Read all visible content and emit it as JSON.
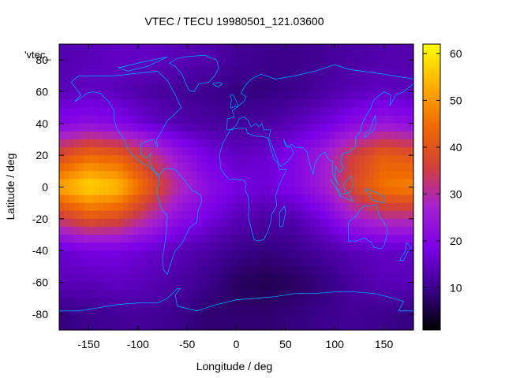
{
  "chart_data": {
    "type": "heatmap",
    "title": "VTEC / TECU 19980501_121.03600",
    "xlabel": "Longitude / deg",
    "ylabel": "Latitude / deg",
    "xlim": [
      -180,
      180
    ],
    "ylim": [
      -90,
      90
    ],
    "clim": [
      1,
      62
    ],
    "xticks": [
      "-150",
      "-100",
      "-50",
      "0",
      "50",
      "100",
      "150"
    ],
    "xtick_values": [
      -150,
      -100,
      -50,
      0,
      50,
      100,
      150
    ],
    "yticks": [
      "80",
      "60",
      "40",
      "20",
      "0",
      "-20",
      "-40",
      "-60",
      "-80"
    ],
    "ytick_values": [
      80,
      60,
      40,
      20,
      0,
      -20,
      -40,
      -60,
      -80
    ],
    "cbticks": [
      "60",
      "50",
      "40",
      "30",
      "20",
      "10"
    ],
    "cbtick_values": [
      60,
      50,
      40,
      30,
      20,
      10
    ],
    "legend_entry": "'vtec_",
    "colormap": [
      "#000000",
      "#3a008a",
      "#7b00e8",
      "#a520d0",
      "#d2403a",
      "#f06a00",
      "#ffb000",
      "#ffff00"
    ],
    "coastline_color": "#00a0ff",
    "field_samples": {
      "description_units": "TECU",
      "lon": [
        -180,
        -150,
        -120,
        -90,
        -60,
        -30,
        0,
        30,
        60,
        90,
        120,
        150,
        180
      ],
      "lat": [
        80,
        60,
        40,
        20,
        0,
        -20,
        -40,
        -60,
        -80
      ],
      "values": [
        [
          13,
          14,
          15,
          15,
          14,
          13,
          11,
          10,
          10,
          11,
          12,
          13,
          13
        ],
        [
          14,
          15,
          14,
          12,
          11,
          10,
          9,
          9,
          10,
          12,
          14,
          15,
          14
        ],
        [
          20,
          22,
          20,
          16,
          13,
          12,
          11,
          12,
          14,
          17,
          21,
          24,
          22
        ],
        [
          38,
          44,
          42,
          34,
          24,
          18,
          15,
          16,
          20,
          26,
          36,
          42,
          40
        ],
        [
          52,
          58,
          55,
          42,
          30,
          22,
          18,
          17,
          20,
          26,
          38,
          46,
          48
        ],
        [
          34,
          40,
          38,
          30,
          22,
          18,
          14,
          12,
          13,
          18,
          26,
          30,
          30
        ],
        [
          16,
          18,
          18,
          16,
          14,
          12,
          10,
          9,
          10,
          12,
          14,
          15,
          15
        ],
        [
          14,
          14,
          15,
          14,
          12,
          10,
          7,
          6,
          7,
          9,
          12,
          14,
          14
        ],
        [
          9,
          10,
          11,
          11,
          10,
          8,
          8,
          8,
          9,
          10,
          11,
          10,
          9
        ]
      ]
    }
  }
}
